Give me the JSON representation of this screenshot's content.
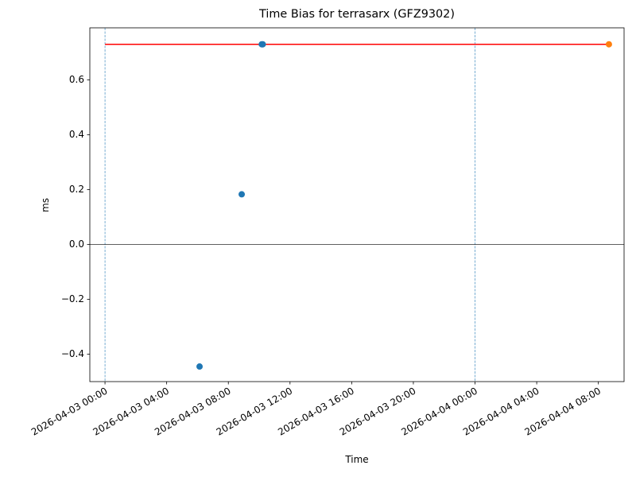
{
  "chart_data": {
    "type": "scatter",
    "title": "Time Bias for terrasarx (GFZ9302)",
    "x_label": "Time",
    "y_label": "ms",
    "xlim": [
      "2026-04-02 23:01",
      "2026-04-04 09:40"
    ],
    "xticks": [
      "2026-04-03 00:00",
      "2026-04-03 04:00",
      "2026-04-03 08:00",
      "2026-04-03 12:00",
      "2026-04-03 16:00",
      "2026-04-03 20:00",
      "2026-04-04 00:00",
      "2026-04-04 04:00",
      "2026-04-04 08:00"
    ],
    "ylim": [
      -0.5,
      0.79
    ],
    "yticks": [
      {
        "value": -0.4,
        "label": "−0.4"
      },
      {
        "value": -0.2,
        "label": "−0.2"
      },
      {
        "value": 0,
        "label": "0.0"
      },
      0.2,
      0.4,
      0.6
    ],
    "series": [
      {
        "color": "#1f77b4",
        "x": [
          "2026-04-03 06:08",
          "2026-04-03 08:52",
          "2026-04-03 10:10",
          "2026-04-03 10:14"
        ],
        "values": [
          -0.445,
          0.183,
          0.73,
          0.73
        ]
      },
      {
        "color": "#ff7f0e",
        "x": [
          "2026-04-04 08:41"
        ],
        "values": [
          0.73
        ]
      },
      {
        "color": "#ff0000",
        "style": "line",
        "x": [
          "2026-04-03 00:00",
          "2026-04-04 08:41"
        ],
        "values": [
          0.73,
          0.73
        ]
      }
    ],
    "vlines": [
      "2026-04-03 00:00",
      "2026-04-04 00:00"
    ],
    "vline_color": "#1f77b4",
    "hline": 0
  }
}
